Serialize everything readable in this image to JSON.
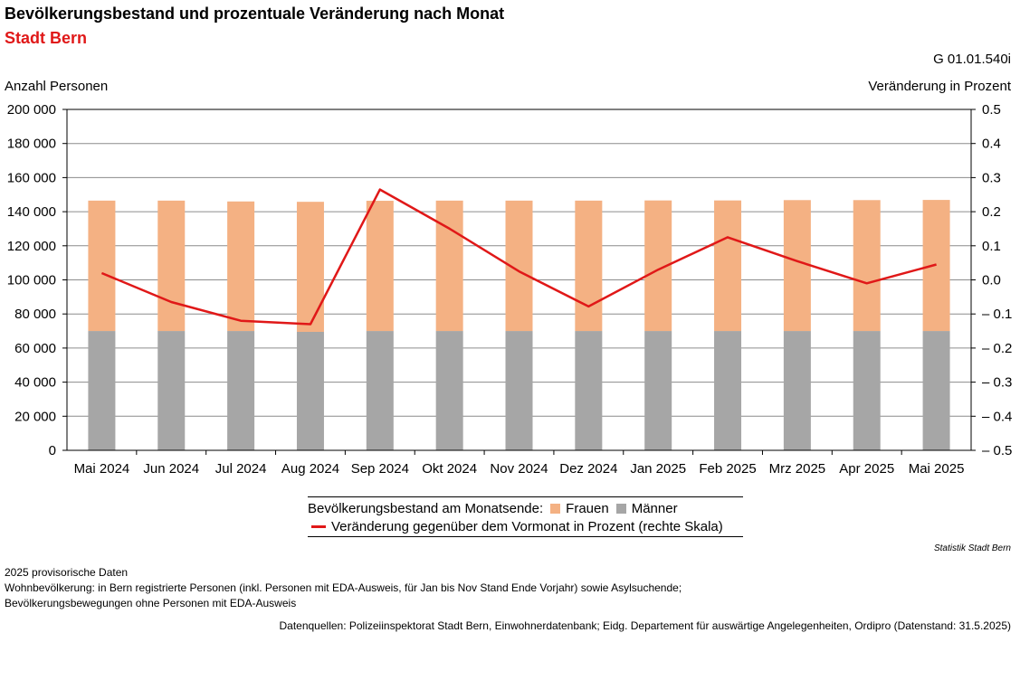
{
  "header": {
    "title": "Bevölkerungsbestand und prozentuale Veränderung nach Monat",
    "subtitle": "Stadt Bern",
    "code": "G 01.01.540i"
  },
  "chart_data": {
    "type": "bar",
    "categories": [
      "Mai 2024",
      "Jun 2024",
      "Jul 2024",
      "Aug 2024",
      "Sep 2024",
      "Okt 2024",
      "Nov 2024",
      "Dez 2024",
      "Jan 2025",
      "Feb 2025",
      "Mrz 2025",
      "Apr 2025",
      "Mai 2025"
    ],
    "ylabel": "Anzahl Personen",
    "y2label": "Veränderung in Prozent",
    "ylim": [
      0,
      200000
    ],
    "y2lim": [
      -0.5,
      0.5
    ],
    "yticks": [
      "0",
      "20 000",
      "40 000",
      "60 000",
      "80 000",
      "100 000",
      "120 000",
      "140 000",
      "160 000",
      "180 000",
      "200 000"
    ],
    "y2ticks": [
      "– 0.5",
      "– 0.4",
      "– 0.3",
      "– 0.2",
      "– 0.1",
      "0.0",
      "0.1",
      "0.2",
      "0.3",
      "0.4",
      "0.5"
    ],
    "stacked": true,
    "grid": true,
    "series": [
      {
        "name": "Männer",
        "type": "bar",
        "color": "#a6a6a6",
        "values": [
          70000,
          70000,
          70000,
          69500,
          70000,
          70000,
          70000,
          70000,
          70000,
          70000,
          70000,
          70000,
          70000
        ]
      },
      {
        "name": "Frauen",
        "type": "bar",
        "color": "#f4b183",
        "values": [
          76500,
          76500,
          76000,
          76300,
          76400,
          76500,
          76500,
          76500,
          76600,
          76600,
          76800,
          76800,
          76900
        ]
      },
      {
        "name": "Veränderung gegenüber dem Vormonat in Prozent (rechte Skala)",
        "type": "line",
        "axis": "right",
        "color": "#e01818",
        "values": [
          0.02,
          -0.065,
          -0.12,
          -0.13,
          0.265,
          0.15,
          0.025,
          -0.078,
          0.03,
          0.125,
          0.055,
          -0.01,
          0.045
        ]
      }
    ]
  },
  "legend": {
    "group_label": "Bevölkerungsbestand am Monatsende:",
    "frauen": "Frauen",
    "maenner": "Männer",
    "line_label": "Veränderung gegenüber dem Vormonat in Prozent (rechte Skala)"
  },
  "footer": {
    "credit": "Statistik Stadt Bern",
    "note1": "2025 provisorische Daten",
    "note2": "Wohnbevölkerung: in Bern registrierte Personen (inkl. Personen mit EDA-Ausweis, für Jan bis Nov Stand Ende Vorjahr) sowie Asylsuchende;",
    "note3": "Bevölkerungsbewegungen ohne Personen mit EDA-Ausweis",
    "source": "Datenquellen: Polizeiinspektorat Stadt Bern, Einwohnerdatenbank; Eidg. Departement für auswärtige Angelegenheiten, Ordipro (Datenstand: 31.5.2025)"
  }
}
